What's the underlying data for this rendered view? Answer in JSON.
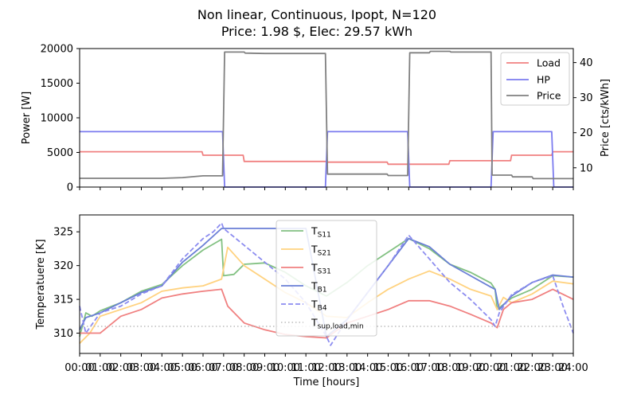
{
  "title": "Non linear, Continuous, Ipopt, N=120",
  "subtitle": "Price: 1.98 $, Elec: 29.57 kWh",
  "colors": {
    "load": "#f08080",
    "hp": "#7b7bef",
    "price": "#808080",
    "ts11": "#82c182",
    "ts21": "#ffd27f",
    "ts31": "#f08080",
    "tb1": "#6a7fd6",
    "tb4": "#8c8cf0",
    "tsup": "#bbbbbb"
  },
  "chart_data": [
    {
      "type": "line",
      "xlabel": "",
      "ylabel": "Power [W]",
      "y2label": "Price [cts/kWh]",
      "xlim": [
        0,
        24
      ],
      "ylim": [
        0,
        20000
      ],
      "y2lim": [
        4.5,
        44
      ],
      "yticks": [
        "0",
        "5000",
        "10000",
        "15000",
        "20000"
      ],
      "yticks_values": [
        0,
        5000,
        10000,
        15000,
        20000
      ],
      "y2ticks": [
        "10",
        "20",
        "30",
        "40"
      ],
      "y2ticks_values": [
        10,
        20,
        30,
        40
      ],
      "legend": "top-right",
      "series": [
        {
          "name": "Load",
          "axis": "left",
          "x": [
            0,
            5.95,
            6,
            7,
            7.95,
            8,
            11.95,
            12,
            14.95,
            15,
            17.95,
            18,
            20.95,
            21,
            22.95,
            23,
            24
          ],
          "values": [
            5100,
            5100,
            4600,
            4600,
            4600,
            3700,
            3700,
            3600,
            3600,
            3300,
            3300,
            3800,
            3800,
            4600,
            4600,
            5100,
            5100
          ]
        },
        {
          "name": "HP",
          "axis": "left",
          "x": [
            0,
            6.95,
            7.05,
            11.95,
            12.05,
            15.95,
            16.05,
            20,
            20.1,
            22.95,
            23.05,
            24
          ],
          "values": [
            8000,
            8000,
            0,
            0,
            8000,
            8000,
            0,
            0,
            8000,
            8000,
            0,
            0
          ]
        },
        {
          "name": "Price",
          "axis": "right",
          "x": [
            0,
            4,
            5,
            6,
            6.95,
            7.05,
            8,
            8.05,
            9,
            11.95,
            12.05,
            14.95,
            15,
            15.95,
            16.05,
            17,
            17.05,
            18,
            18.05,
            20,
            20.05,
            21,
            21.05,
            22,
            22.05,
            24
          ],
          "values": [
            7,
            7,
            7.2,
            7.7,
            7.7,
            43,
            43,
            42.7,
            42.6,
            42.6,
            8.2,
            8.2,
            7.8,
            7.8,
            42.8,
            42.8,
            43.2,
            43.2,
            43,
            43,
            7.9,
            7.9,
            7.4,
            7.4,
            6.9,
            6.9
          ]
        }
      ]
    },
    {
      "type": "line",
      "xlabel": "Time [hours]",
      "ylabel": "Temperatuere [K]",
      "xlim": [
        0,
        24
      ],
      "ylim": [
        307,
        327.5
      ],
      "yticks": [
        "310",
        "315",
        "320",
        "325"
      ],
      "yticks_values": [
        310,
        315,
        320,
        325
      ],
      "xticks": [
        "00:00",
        "01:00",
        "02:00",
        "03:00",
        "04:00",
        "05:00",
        "06:00",
        "07:00",
        "08:00",
        "09:00",
        "10:00",
        "11:00",
        "12:00",
        "13:00",
        "14:00",
        "15:00",
        "16:00",
        "17:00",
        "18:00",
        "19:00",
        "20:00",
        "21:00",
        "22:00",
        "23:00",
        "24:00"
      ],
      "legend": "top-center",
      "series": [
        {
          "name": "T_S11",
          "label_main": "T",
          "label_sub": "S11",
          "x": [
            0,
            0.3,
            0.6,
            1,
            2,
            3,
            4,
            5,
            6,
            6.9,
            7,
            7.5,
            8,
            9,
            10,
            11,
            12,
            13,
            14,
            15,
            16,
            17,
            18,
            19,
            20,
            20.2,
            20.3,
            20.5,
            21,
            22,
            23,
            24
          ],
          "values": [
            309.5,
            313,
            312.5,
            313.3,
            314.5,
            316.2,
            317.2,
            320,
            322.3,
            323.9,
            318.5,
            318.7,
            320.2,
            320.4,
            319,
            317,
            315.5,
            317.5,
            320,
            322,
            324,
            322.5,
            320.2,
            319,
            317.4,
            316.5,
            313.5,
            314,
            315.2,
            316.5,
            318.5,
            318.3
          ]
        },
        {
          "name": "T_S21",
          "label_main": "T",
          "label_sub": "S21",
          "x": [
            0,
            0.5,
            1,
            2,
            3,
            4,
            5,
            6,
            6.9,
            7.2,
            8,
            9,
            10,
            11,
            12,
            13,
            14,
            15,
            16,
            17,
            18,
            19,
            20,
            20.3,
            20.6,
            21,
            22,
            23,
            24
          ],
          "values": [
            308.5,
            310,
            312.5,
            313.5,
            314.5,
            316.2,
            316.7,
            317,
            318,
            322.7,
            320,
            318,
            316,
            314.5,
            312.5,
            312.3,
            314.5,
            316.5,
            318,
            319.2,
            318,
            316.5,
            315.5,
            313.5,
            315.3,
            314.5,
            315.8,
            317.7,
            317.3
          ]
        },
        {
          "name": "T_S31",
          "label_main": "T",
          "label_sub": "S31",
          "x": [
            0,
            0.5,
            1,
            2,
            3,
            4,
            5,
            6,
            6.9,
            7.2,
            8,
            9,
            10,
            11,
            12,
            13,
            14,
            15,
            16,
            17,
            18,
            19,
            20,
            20.3,
            20.6,
            21,
            22,
            23,
            24
          ],
          "values": [
            310,
            310,
            310,
            312.5,
            313.5,
            315.2,
            315.8,
            316.2,
            316.5,
            314,
            311.5,
            310.5,
            309.8,
            309.5,
            309.3,
            311.5,
            312.5,
            313.5,
            314.8,
            314.8,
            314,
            312.8,
            311.5,
            310.8,
            313.5,
            314.5,
            315,
            316.5,
            315
          ]
        },
        {
          "name": "T_B1",
          "label_main": "T",
          "label_sub": "B1",
          "x": [
            0,
            0.3,
            1,
            2,
            3,
            4,
            5,
            6,
            6.9,
            7,
            8,
            9,
            10,
            11,
            12,
            13,
            14,
            15,
            16,
            17,
            18,
            19,
            20,
            20.2,
            20.4,
            21,
            22,
            23,
            24
          ],
          "values": [
            310.5,
            312.3,
            313,
            314.5,
            316,
            317,
            320.5,
            323,
            325.5,
            325.5,
            325.5,
            325.5,
            325.5,
            325.5,
            309.5,
            312,
            316,
            320,
            324,
            322.8,
            320.2,
            318.5,
            316.8,
            316.5,
            313.5,
            315.5,
            317.5,
            318.6,
            318.3
          ]
        },
        {
          "name": "T_B4",
          "label_main": "T",
          "label_sub": "B4",
          "dashed": true,
          "x": [
            0,
            0.3,
            1,
            2,
            3,
            4,
            5,
            6,
            6.5,
            6.9,
            7,
            8,
            9,
            10,
            11,
            12,
            12.2,
            13,
            14,
            15,
            16,
            17,
            18,
            19,
            20,
            20.2,
            20.4,
            21,
            22,
            23,
            23.5,
            24
          ],
          "values": [
            314,
            310,
            313,
            314,
            315.8,
            317,
            321,
            324,
            325,
            326.3,
            325.5,
            323,
            320.5,
            318,
            314.5,
            309.5,
            308.2,
            312,
            316,
            320,
            324.5,
            321,
            317.5,
            315,
            312,
            311,
            313,
            315.7,
            317.5,
            318.5,
            314,
            310
          ]
        },
        {
          "name": "T_sup,load,min",
          "label_main": "T",
          "label_sub": "sup,load,min",
          "dotted": true,
          "x": [
            0,
            24
          ],
          "values": [
            311,
            311
          ]
        }
      ]
    }
  ]
}
